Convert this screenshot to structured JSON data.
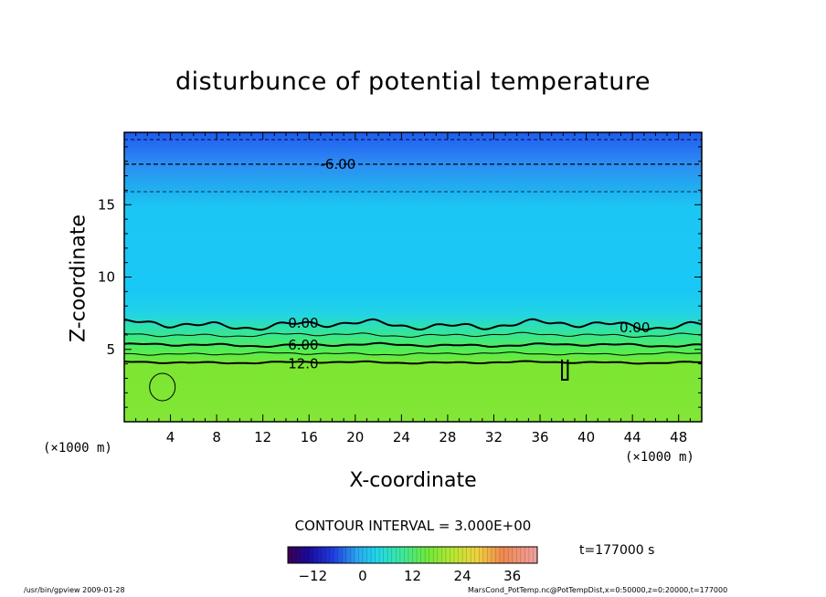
{
  "chart_data": {
    "type": "contour",
    "title": "disturbunce of potential temperature",
    "xlabel": "X-coordinate",
    "ylabel": "Z-coordinate",
    "x_unit_left": "(×1000 m)",
    "x_unit_right": "(×1000 m)",
    "xlim": [
      0,
      50
    ],
    "ylim": [
      0,
      20
    ],
    "x_ticks": [
      4,
      8,
      12,
      16,
      20,
      24,
      28,
      32,
      36,
      40,
      44,
      48
    ],
    "y_ticks": [
      5,
      10,
      15
    ],
    "contour_interval_text": "CONTOUR INTERVAL = 3.000E+00",
    "contour_labels": [
      {
        "text": "-6.00",
        "x": 18.5,
        "z": 17.8
      },
      {
        "text": "0.00",
        "x": 15.5,
        "z": 6.8
      },
      {
        "text": "0.00",
        "x": 44.2,
        "z": 6.5
      },
      {
        "text": "6.00",
        "x": 15.5,
        "z": 5.3
      },
      {
        "text": "12.0",
        "x": 15.5,
        "z": 4.0
      }
    ],
    "colorbar": {
      "ticks": [
        -12,
        0,
        12,
        24,
        36
      ],
      "range": [
        -18,
        42
      ]
    },
    "time_label": "t=177000 s",
    "field_description_levels": [
      {
        "z_top": 4.2,
        "value": 15
      },
      {
        "z_top": 5.2,
        "value": 12
      },
      {
        "z_top": 6.4,
        "value": 6
      },
      {
        "z_top": 16.0,
        "value": 0
      },
      {
        "z_top": 18.0,
        "value": -6
      },
      {
        "z_top": 20.0,
        "value": -9
      }
    ]
  },
  "footer": {
    "left": "/usr/bin/gpview   2009-01-28",
    "right": "MarsCond_PotTemp.nc@PotTempDist,x=0:50000,z=0:20000,t=177000"
  }
}
